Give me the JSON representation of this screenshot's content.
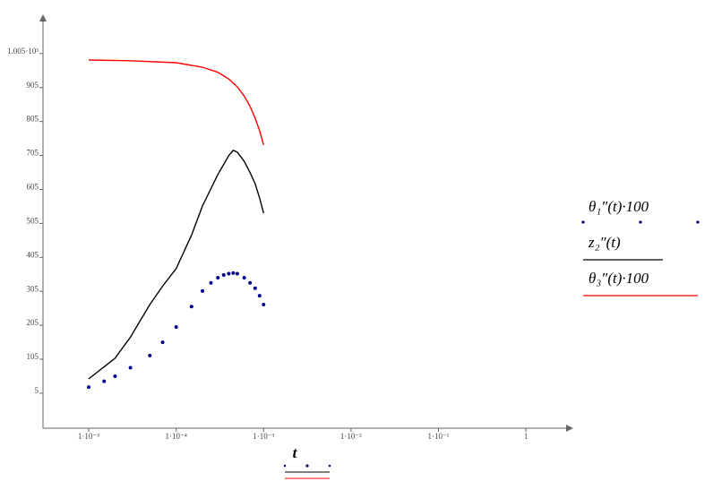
{
  "chart_data": {
    "type": "line",
    "x_label": "t",
    "xscale": "log",
    "xlim": [
      3e-06,
      2.75
    ],
    "xticks": [
      {
        "value": 1e-05,
        "label": "1·10⁻⁵"
      },
      {
        "value": 0.0001,
        "label": "1·10⁻⁴"
      },
      {
        "value": 0.001,
        "label": "1·10⁻³"
      },
      {
        "value": 0.01,
        "label": "1·10⁻²"
      },
      {
        "value": 0.1,
        "label": "1·10⁻¹"
      },
      1
    ],
    "ylim": [
      -98,
      1110
    ],
    "yticks": [
      5,
      105,
      205,
      305,
      405,
      505,
      605,
      705,
      805,
      905,
      {
        "value": 1005,
        "label": "1.005·10³"
      }
    ],
    "series": [
      {
        "name": "θ₁″(t)·100",
        "color": "#00008b",
        "style": "dots",
        "x": [
          1e-05,
          1.5e-05,
          2e-05,
          3e-05,
          5e-05,
          7e-05,
          0.0001,
          0.00015,
          0.0002,
          0.00025,
          0.0003,
          0.00035,
          0.0004,
          0.00045,
          0.0005,
          0.0006,
          0.0007,
          0.0008,
          0.0009,
          0.001
        ],
        "values": [
          23,
          40,
          55,
          80,
          116,
          155,
          200,
          260,
          306,
          330,
          345,
          353,
          357,
          359,
          357,
          345,
          330,
          314,
          292,
          266
        ]
      },
      {
        "name": "z₂″(t)",
        "color": "#000000",
        "style": "line",
        "x": [
          1e-05,
          2e-05,
          3e-05,
          5e-05,
          7e-05,
          0.0001,
          0.00015,
          0.0002,
          0.0003,
          0.0004,
          0.00045,
          0.0005,
          0.0006,
          0.0007,
          0.0008,
          0.0009,
          0.001
        ],
        "values": [
          47,
          108,
          170,
          266,
          320,
          372,
          470,
          556,
          649,
          705,
          720,
          715,
          688,
          655,
          622,
          580,
          535
        ]
      },
      {
        "name": "θ₃″(t)·100",
        "color": "#ff0000",
        "style": "line",
        "x": [
          1e-05,
          3e-05,
          0.0001,
          0.0002,
          0.0003,
          0.0004,
          0.0005,
          0.0006,
          0.0007,
          0.0008,
          0.0009,
          0.001
        ],
        "values": [
          986,
          984,
          978,
          965,
          950,
          930,
          907,
          880,
          850,
          815,
          778,
          736
        ]
      }
    ]
  }
}
